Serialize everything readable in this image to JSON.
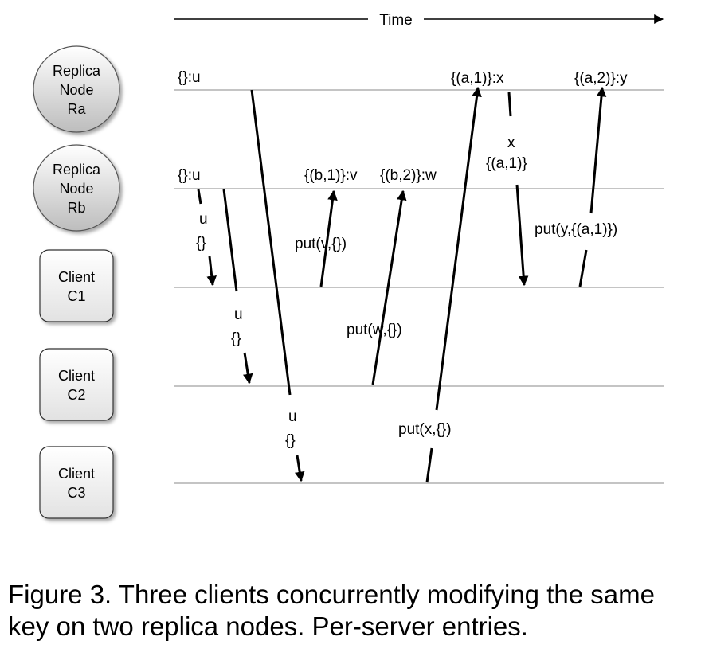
{
  "time_axis": {
    "label": "Time"
  },
  "nodes": [
    {
      "id": "ra",
      "kind": "replica",
      "lines": [
        "Replica",
        "Node",
        "Ra"
      ]
    },
    {
      "id": "rb",
      "kind": "replica",
      "lines": [
        "Replica",
        "Node",
        "Rb"
      ]
    },
    {
      "id": "c1",
      "kind": "client",
      "lines": [
        "Client",
        "C1"
      ]
    },
    {
      "id": "c2",
      "kind": "client",
      "lines": [
        "Client",
        "C2"
      ]
    },
    {
      "id": "c3",
      "kind": "client",
      "lines": [
        "Client",
        "C3"
      ]
    }
  ],
  "states": [
    {
      "node": "ra",
      "text": "{}:u"
    },
    {
      "node": "rb",
      "text": "{}:u"
    },
    {
      "node": "rb",
      "text": "{(b,1)}:v"
    },
    {
      "node": "rb",
      "text": "{(b,2)}:w"
    },
    {
      "node": "ra",
      "text": "{(a,1)}:x"
    },
    {
      "node": "ra",
      "text": "{(a,2)}:y"
    }
  ],
  "messages": [
    {
      "from": "rb",
      "to": "c1",
      "lines": [
        "u",
        "{}"
      ],
      "dashed": true
    },
    {
      "from": "rb",
      "to": "c2",
      "lines": [
        "u",
        "{}"
      ],
      "dashed": true
    },
    {
      "from": "ra",
      "to": "c3",
      "lines": [
        "u",
        "{}"
      ],
      "dashed": true
    },
    {
      "from": "c1",
      "to": "rb",
      "lines": [
        "put(v,{})"
      ],
      "dashed": false
    },
    {
      "from": "c2",
      "to": "rb",
      "lines": [
        "put(w,{})"
      ],
      "dashed": false
    },
    {
      "from": "c3",
      "to": "ra",
      "lines": [
        "put(x,{})"
      ],
      "dashed": true
    },
    {
      "from": "ra",
      "to": "c1",
      "lines": [
        "x",
        "{(a,1)}"
      ],
      "dashed": true
    },
    {
      "from": "c1",
      "to": "ra",
      "lines": [
        "put(y,{(a,1)})"
      ],
      "dashed": false
    }
  ],
  "caption": "Figure 3.  Three clients concurrently modifying the same key on two replica nodes. Per-server entries."
}
